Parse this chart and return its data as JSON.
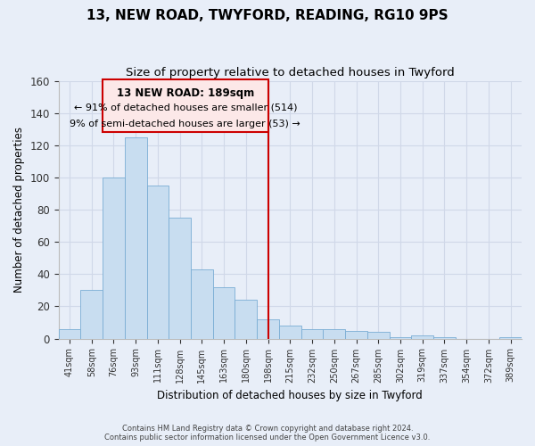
{
  "title": "13, NEW ROAD, TWYFORD, READING, RG10 9PS",
  "subtitle": "Size of property relative to detached houses in Twyford",
  "xlabel": "Distribution of detached houses by size in Twyford",
  "ylabel": "Number of detached properties",
  "bar_labels": [
    "41sqm",
    "58sqm",
    "76sqm",
    "93sqm",
    "111sqm",
    "128sqm",
    "145sqm",
    "163sqm",
    "180sqm",
    "198sqm",
    "215sqm",
    "232sqm",
    "250sqm",
    "267sqm",
    "285sqm",
    "302sqm",
    "319sqm",
    "337sqm",
    "354sqm",
    "372sqm",
    "389sqm"
  ],
  "bar_values": [
    6,
    30,
    100,
    125,
    95,
    75,
    43,
    32,
    24,
    12,
    8,
    6,
    6,
    5,
    4,
    1,
    2,
    1,
    0,
    0,
    1
  ],
  "bar_color": "#c8ddf0",
  "bar_edge_color": "#7aadd4",
  "ylim": [
    0,
    160
  ],
  "yticks": [
    0,
    20,
    40,
    60,
    80,
    100,
    120,
    140,
    160
  ],
  "vline_x": 9.0,
  "vline_color": "#cc0000",
  "annotation_title": "13 NEW ROAD: 189sqm",
  "annotation_line1": "← 91% of detached houses are smaller (514)",
  "annotation_line2": "9% of semi-detached houses are larger (53) →",
  "annotation_box_facecolor": "#fce8e8",
  "annotation_box_edgecolor": "#cc0000",
  "footer_line1": "Contains HM Land Registry data © Crown copyright and database right 2024.",
  "footer_line2": "Contains public sector information licensed under the Open Government Licence v3.0.",
  "background_color": "#e8eef8",
  "grid_color": "#d0d8e8",
  "title_fontsize": 11,
  "subtitle_fontsize": 9.5
}
